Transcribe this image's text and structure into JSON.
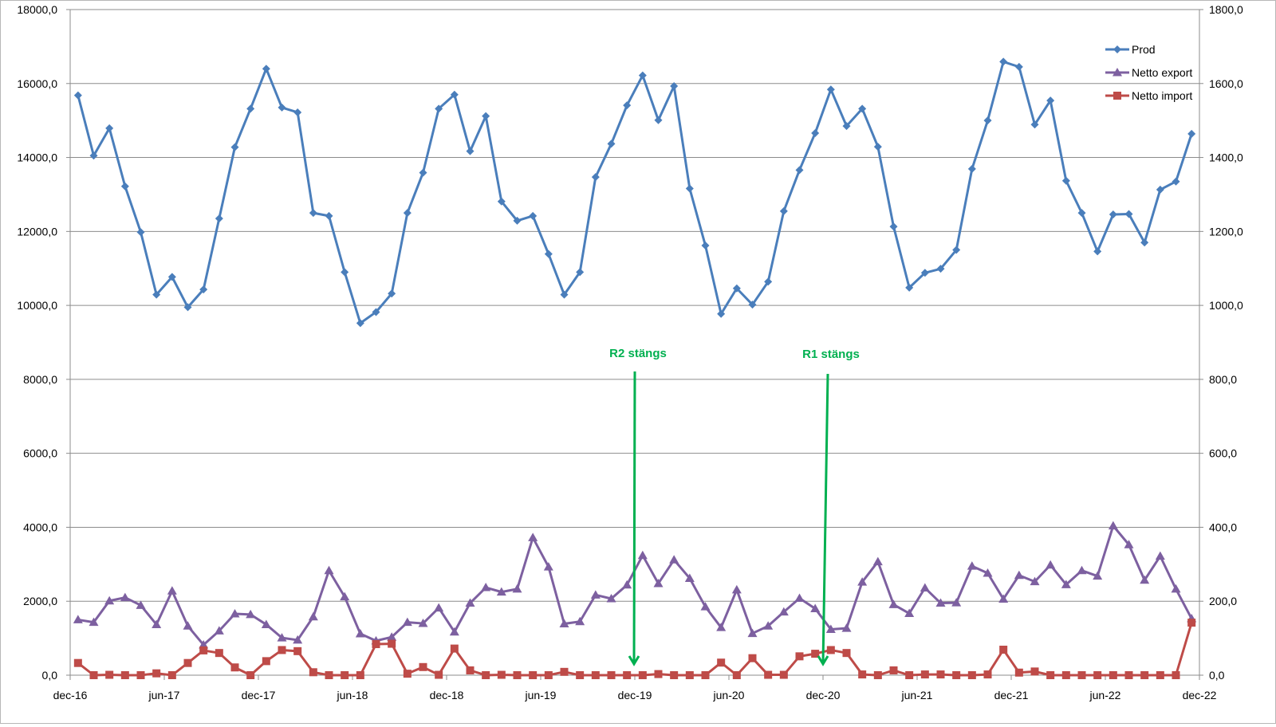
{
  "chart_data": {
    "type": "line",
    "x_tick_labels": [
      "dec-16",
      "jun-17",
      "dec-17",
      "jun-18",
      "dec-18",
      "jun-19",
      "dec-19",
      "jun-20",
      "dec-20",
      "jun-21",
      "dec-21",
      "jun-22",
      "dec-22"
    ],
    "y_left": {
      "range": [
        0,
        18000
      ],
      "tick_labels": [
        "0,0",
        "2000,0",
        "4000,0",
        "6000,0",
        "8000,0",
        "10000,0",
        "12000,0",
        "14000,0",
        "16000,0",
        "18000,0"
      ]
    },
    "y_right": {
      "range": [
        0,
        1800
      ],
      "tick_labels": [
        "0,0",
        "200,0",
        "400,0",
        "600,0",
        "800,0",
        "1000,0",
        "1200,0",
        "1400,0",
        "1600,0",
        "1800,0"
      ]
    },
    "grid": true,
    "legend_position": "top-right",
    "series": [
      {
        "name": "Prod",
        "color": "#4a7ebb",
        "marker": "diamond",
        "axis": "left",
        "values": [
          15680,
          14050,
          14790,
          13220,
          11980,
          10290,
          10770,
          9950,
          10430,
          12350,
          14280,
          15320,
          16400,
          15350,
          15220,
          12500,
          12420,
          10900,
          9520,
          9820,
          10320,
          12500,
          13590,
          15320,
          15700,
          14170,
          15120,
          12810,
          12290,
          12420,
          11390,
          10290,
          10900,
          13470,
          14370,
          15410,
          16220,
          15010,
          15930,
          13160,
          11620,
          9770,
          10460,
          10020,
          10640,
          12550,
          13660,
          14660,
          15840,
          14850,
          15320,
          14290,
          12130,
          10480,
          10880,
          10990,
          11500,
          13690,
          15000,
          16590,
          16450,
          14890,
          15540,
          13370,
          12500,
          11460,
          12460,
          12470,
          11700,
          13130,
          13350,
          14640
        ]
      },
      {
        "name": "Netto export",
        "color": "#7d60a0",
        "marker": "triangle",
        "axis": "left",
        "values": [
          1500,
          1430,
          2010,
          2100,
          1890,
          1370,
          2280,
          1330,
          820,
          1200,
          1660,
          1640,
          1370,
          1010,
          950,
          1580,
          2830,
          2120,
          1120,
          930,
          1030,
          1430,
          1400,
          1820,
          1170,
          1950,
          2370,
          2250,
          2330,
          3720,
          2930,
          1390,
          1450,
          2170,
          2070,
          2440,
          3240,
          2480,
          3120,
          2620,
          1850,
          1290,
          2310,
          1130,
          1330,
          1710,
          2080,
          1800,
          1240,
          1270,
          2520,
          3070,
          1910,
          1670,
          2360,
          1950,
          1960,
          2950,
          2760,
          2060,
          2700,
          2530,
          2980,
          2450,
          2830,
          2680,
          4040,
          3530,
          2570,
          3220,
          2330,
          1530
        ]
      },
      {
        "name": "Netto import",
        "color": "#be4b48",
        "marker": "square",
        "axis": "left",
        "values": [
          330,
          0,
          10,
          0,
          0,
          50,
          0,
          330,
          670,
          600,
          210,
          0,
          380,
          680,
          650,
          80,
          0,
          0,
          0,
          840,
          850,
          40,
          220,
          10,
          720,
          130,
          0,
          10,
          0,
          0,
          0,
          90,
          0,
          0,
          0,
          0,
          0,
          30,
          0,
          0,
          0,
          340,
          0,
          460,
          10,
          10,
          510,
          580,
          680,
          600,
          20,
          0,
          130,
          0,
          20,
          20,
          0,
          0,
          20,
          690,
          70,
          100,
          0,
          0,
          0,
          0,
          0,
          0,
          0,
          0,
          0,
          1420
        ]
      }
    ],
    "annotations": [
      {
        "text": "R2 stängs",
        "at_x_label": "dec-19",
        "color": "#00b050"
      },
      {
        "text": "R1 stängs",
        "at_x_label": "dec-20",
        "color": "#00b050"
      }
    ]
  }
}
